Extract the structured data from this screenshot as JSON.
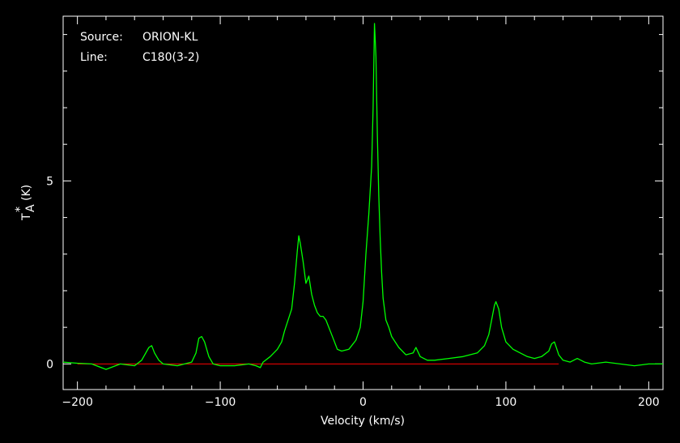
{
  "chart_data": {
    "type": "line",
    "annotations": {
      "source_label": "Source:",
      "source_value": "ORION-KL",
      "line_label": "Line:",
      "line_value": "C180(3-2)"
    },
    "xlabel": "Velocity (km/s)",
    "ylabel_main": "T",
    "ylabel_sup": "*",
    "ylabel_sub": "A",
    "ylabel_unit": "(K)",
    "xlim": [
      -210,
      210
    ],
    "ylim": [
      -0.7,
      9.5
    ],
    "x_ticks": [
      -200,
      -100,
      0,
      100,
      200
    ],
    "x_tick_labels": [
      "−200",
      "−100",
      "0",
      "100",
      "200"
    ],
    "y_ticks": [
      0,
      5
    ],
    "y_tick_labels": [
      "0",
      "5"
    ],
    "grid": false,
    "colors": {
      "background": "#000000",
      "spectrum": "#00ff00",
      "baseline": "#ff0000",
      "axes": "#ffffff",
      "text": "#ffffff"
    },
    "baseline": {
      "y": 0,
      "x_start": -200,
      "x_end": 137
    },
    "series": [
      {
        "x": [
          -210,
          -200,
          -190,
          -180,
          -170,
          -160,
          -155,
          -150,
          -148,
          -146,
          -143,
          -140,
          -130,
          -120,
          -117,
          -115,
          -113,
          -111,
          -108,
          -105,
          -100,
          -90,
          -80,
          -75,
          -72,
          -70,
          -65,
          -60,
          -57,
          -55,
          -50,
          -48,
          -46,
          -45,
          -44,
          -42,
          -40,
          -38,
          -36,
          -34,
          -32,
          -30,
          -28,
          -26,
          -24,
          -22,
          -20,
          -18,
          -15,
          -10,
          -5,
          -2,
          0,
          2,
          4,
          6,
          7,
          8,
          9,
          10,
          11,
          12,
          13,
          14,
          16,
          18,
          20,
          25,
          30,
          35,
          37,
          40,
          45,
          50,
          60,
          70,
          80,
          85,
          88,
          90,
          92,
          93,
          95,
          97,
          100,
          105,
          110,
          115,
          120,
          125,
          130,
          132,
          134,
          137,
          140,
          145,
          150,
          155,
          160,
          170,
          180,
          190,
          200,
          210
        ],
        "y": [
          0.05,
          0.02,
          0.0,
          -0.15,
          0.0,
          -0.05,
          0.1,
          0.45,
          0.5,
          0.3,
          0.1,
          0.0,
          -0.05,
          0.05,
          0.3,
          0.7,
          0.75,
          0.6,
          0.2,
          0.0,
          -0.05,
          -0.05,
          0.0,
          -0.05,
          -0.1,
          0.05,
          0.2,
          0.4,
          0.6,
          0.9,
          1.5,
          2.2,
          3.1,
          3.5,
          3.3,
          2.8,
          2.2,
          2.4,
          1.9,
          1.6,
          1.4,
          1.3,
          1.3,
          1.2,
          1.0,
          0.8,
          0.6,
          0.4,
          0.35,
          0.4,
          0.65,
          1.0,
          1.7,
          3.0,
          4.1,
          5.4,
          7.0,
          9.3,
          8.4,
          6.3,
          4.6,
          3.4,
          2.5,
          1.8,
          1.2,
          1.0,
          0.75,
          0.45,
          0.25,
          0.3,
          0.45,
          0.2,
          0.1,
          0.1,
          0.15,
          0.2,
          0.3,
          0.5,
          0.8,
          1.2,
          1.6,
          1.7,
          1.5,
          1.0,
          0.6,
          0.4,
          0.3,
          0.2,
          0.15,
          0.2,
          0.35,
          0.55,
          0.6,
          0.25,
          0.1,
          0.05,
          0.15,
          0.05,
          0.0,
          0.05,
          0.0,
          -0.05,
          0.0,
          0.0
        ]
      }
    ]
  }
}
